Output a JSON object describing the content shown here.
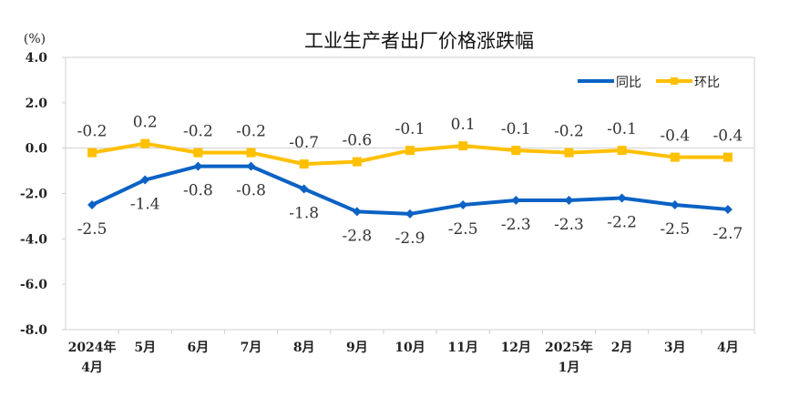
{
  "chart_data": {
    "type": "line",
    "title": "工业生产者出厂价格涨跌幅",
    "ylabel": "(%)",
    "ylim": [
      -8.0,
      4.0
    ],
    "yticks": [
      "4.0",
      "2.0",
      "0.0",
      "-2.0",
      "-4.0",
      "-6.0",
      "-8.0"
    ],
    "ytick_values": [
      4,
      2,
      0,
      -2,
      -4,
      -6,
      -8
    ],
    "grid": false,
    "legend_position": "top-right",
    "categories": [
      [
        "2024年",
        "4月"
      ],
      [
        "5月"
      ],
      [
        "6月"
      ],
      [
        "7月"
      ],
      [
        "8月"
      ],
      [
        "9月"
      ],
      [
        "10月"
      ],
      [
        "11月"
      ],
      [
        "12月"
      ],
      [
        "2025年",
        "1月"
      ],
      [
        "2月"
      ],
      [
        "3月"
      ],
      [
        "4月"
      ]
    ],
    "series": [
      {
        "name": "同比",
        "color": "#0b62c4",
        "marker": "diamond",
        "label_position": "below",
        "values": [
          -2.5,
          -1.4,
          -0.8,
          -0.8,
          -1.8,
          -2.8,
          -2.9,
          -2.5,
          -2.3,
          -2.3,
          -2.2,
          -2.5,
          -2.7
        ]
      },
      {
        "name": "环比",
        "color": "#ffc000",
        "marker": "square",
        "label_position": "above",
        "values": [
          -0.2,
          0.2,
          -0.2,
          -0.2,
          -0.7,
          -0.6,
          -0.1,
          0.1,
          -0.1,
          -0.2,
          -0.1,
          -0.4,
          -0.4
        ]
      }
    ]
  }
}
